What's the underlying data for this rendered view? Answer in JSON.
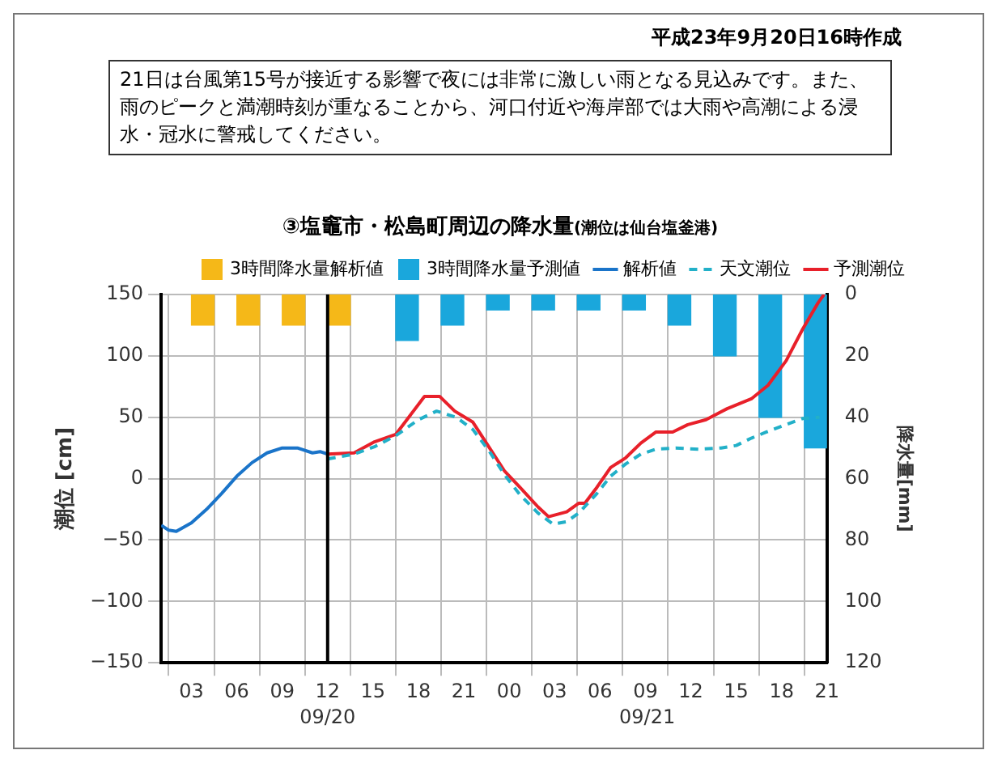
{
  "chart_data": {
    "type": "line",
    "title": "③塩竈市・松島町周辺の降水量",
    "subtitle": "(潮位は仙台塩釜港)",
    "ylabel": "潮位 [cm]",
    "y2label": "降水量[mm]",
    "annotations": [
      "平成23年9月20日16時作成",
      "21日は台風第15号が接近する影響で夜には非常に激しい雨となる見込みです。また、雨のピークと満潮時刻が重なることから、河口付近や海岸部では大雨や高潮による浸水・冠水に警戒してください。",
      "09/20",
      "09/21"
    ],
    "series": [
      {
        "name": "3時間降水量解析値",
        "type": "bar",
        "axis": "y2",
        "color": "#f5b818",
        "x": [
          4.5,
          7.5,
          10.5,
          13.5
        ],
        "values": [
          10,
          10,
          10,
          10
        ]
      },
      {
        "name": "3時間降水量予測値",
        "type": "bar",
        "axis": "y2",
        "color": "#1aa7dc",
        "x": [
          16.5,
          19.5,
          22.5,
          25.5,
          28.5,
          31.5,
          34.5,
          37.5,
          40.5,
          43.5
        ],
        "values": [
          15,
          10,
          5,
          5,
          5,
          5,
          10,
          20,
          40,
          50
        ]
      },
      {
        "name": "解析値",
        "color": "#1a74c9",
        "line_style": "solid",
        "x": [
          1,
          1.5,
          2,
          3,
          4,
          5,
          6,
          7,
          8,
          9,
          10,
          11,
          11.5,
          12
        ],
        "values": [
          -38,
          -42,
          -43,
          -36,
          -25,
          -12,
          2,
          13,
          21,
          25,
          25,
          21,
          22,
          20
        ]
      },
      {
        "name": "天文潮位",
        "color": "#22b0c8",
        "line_style": "dashed",
        "x": [
          12,
          13.75,
          15.1,
          16.5,
          18,
          19.2,
          20.5,
          21.6,
          22.7,
          23.7,
          24.7,
          25.9,
          26.9,
          27.8,
          28.6,
          29.8,
          30.7,
          31.7,
          32.7,
          33.7,
          35,
          36.5,
          38,
          39,
          40,
          41,
          42.3,
          43.4,
          44.5
        ],
        "values": [
          16,
          20,
          26,
          35,
          48,
          55,
          50,
          40,
          22,
          3,
          -13,
          -28,
          -37,
          -35,
          -28,
          -12,
          2,
          12,
          20,
          24,
          25,
          24,
          25,
          27,
          33,
          38,
          44,
          49,
          50
        ]
      },
      {
        "name": "予測潮位",
        "color": "#e8202a",
        "line_style": "solid",
        "x": [
          12,
          13.75,
          15.1,
          16.5,
          17.3,
          18.4,
          19.4,
          20.4,
          21.6,
          22.7,
          23.7,
          24.7,
          25.9,
          26.6,
          27.8,
          28.6,
          29,
          29.8,
          30.7,
          31.7,
          32.7,
          33.7,
          34.8,
          35.8,
          37,
          38.4,
          40,
          41.1,
          42.3,
          43.4,
          44.4,
          44.8
        ],
        "values": [
          20,
          21,
          30,
          36,
          49,
          67,
          67,
          55,
          46,
          25,
          6,
          -7,
          -23,
          -31,
          -27,
          -20,
          -20,
          -7,
          9,
          17,
          29,
          38,
          38,
          44,
          48,
          57,
          65,
          76,
          96,
          122,
          143,
          150
        ]
      }
    ],
    "xlim": [
      1,
      45
    ],
    "xticks": [
      {
        "value": 3,
        "label": "03"
      },
      {
        "value": 6,
        "label": "06"
      },
      {
        "value": 9,
        "label": "09"
      },
      12,
      15,
      18,
      21,
      {
        "value": 24,
        "label": "00"
      },
      {
        "value": 27,
        "label": "03"
      },
      {
        "value": 30,
        "label": "06"
      },
      {
        "value": 33,
        "label": "09"
      },
      {
        "value": 36,
        "label": "12"
      },
      {
        "value": 39,
        "label": "15"
      },
      {
        "value": 42,
        "label": "18"
      },
      {
        "value": 45,
        "label": "21"
      }
    ],
    "ylim": [
      -150,
      150
    ],
    "yticks": [
      -150,
      -100,
      -50,
      0,
      50,
      100,
      150
    ],
    "y2lim": [
      120,
      0
    ],
    "y2ticks": [
      0,
      20,
      40,
      60,
      80,
      100,
      120
    ],
    "ref_lines": [
      {
        "axis": "x",
        "value": 12,
        "color": "#000000"
      }
    ],
    "grid": true,
    "legend": "top",
    "marker": "none"
  }
}
